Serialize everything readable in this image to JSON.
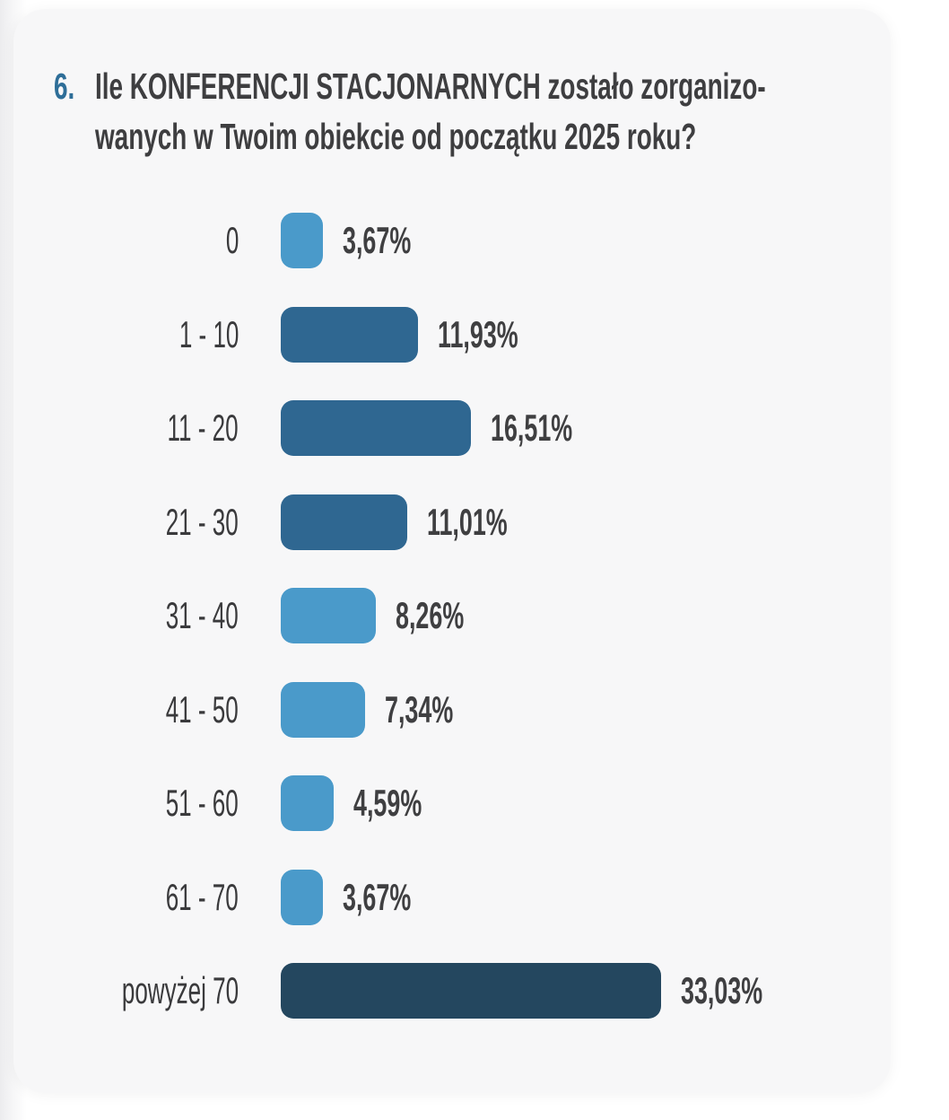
{
  "question": {
    "number": "6.",
    "title_line1": "Ile KONFERENCJI STACJONARNYCH zostało zorganizo-",
    "title_line2": "wanych w Twoim obiekcie od początku 2025 roku?"
  },
  "colors": {
    "question_number_accent": "#2E6E98",
    "title_text": "#3E3E40",
    "category_text": "#3A3A3C",
    "value_text": "#3F3F41",
    "card_background": "#F7F7F8",
    "page_background": "#FFFFFF",
    "bar_light_blue": "#4A9ACA",
    "bar_medium_blue": "#2F6791",
    "bar_dark_navy": "#24475F"
  },
  "chart_data": {
    "type": "bar",
    "orientation": "horizontal",
    "title": "Ile KONFERENCJI STACJONARNYCH zostało zorganizowanych w Twoim obiekcie od początku 2025 roku?",
    "categories": [
      "0",
      "1 - 10",
      "11 - 20",
      "21 - 30",
      "31 - 40",
      "41 - 50",
      "51 - 60",
      "61 - 70",
      "powyżej 70"
    ],
    "values": [
      3.67,
      11.93,
      16.51,
      11.01,
      8.26,
      7.34,
      4.59,
      3.67,
      33.03
    ],
    "value_labels": [
      "3,67%",
      "11,93%",
      "16,51%",
      "11,01%",
      "8,26%",
      "7,34%",
      "4,59%",
      "3,67%",
      "33,03%"
    ],
    "bar_colors": [
      "#4A9ACA",
      "#2F6791",
      "#2F6791",
      "#2F6791",
      "#4A9ACA",
      "#4A9ACA",
      "#4A9ACA",
      "#4A9ACA",
      "#24475F"
    ],
    "unit": "%",
    "xlim": [
      0,
      35
    ],
    "grid": false,
    "legend": false,
    "value_label_position": "right-of-bar"
  }
}
